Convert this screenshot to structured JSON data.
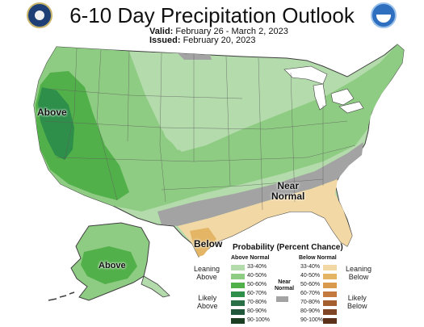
{
  "header": {
    "title": "6-10 Day Precipitation Outlook",
    "valid_label": "Valid:",
    "valid_dates": "February 26 - March 2, 2023",
    "issued_label": "Issued:",
    "issued_date": "February 20, 2023"
  },
  "map_labels": {
    "west_coast": "Above",
    "near_normal": "Near\nNormal",
    "texas": "Below",
    "alaska": "Above"
  },
  "legend": {
    "title": "Probability (Percent Chance)",
    "above_header": "Above Normal",
    "below_header": "Below Normal",
    "near_header": "Near\nNormal",
    "leaning_above": "Leaning\nAbove",
    "likely_above": "Likely\nAbove",
    "leaning_below": "Leaning\nBelow",
    "likely_below": "Likely\nBelow",
    "ranges": [
      "33-40%",
      "40-50%",
      "50-60%",
      "60-70%",
      "70-80%",
      "80-90%",
      "90-100%"
    ],
    "above_colors": [
      "#b3dbab",
      "#8fcc83",
      "#52b04a",
      "#2d8f49",
      "#297046",
      "#21573a",
      "#1a3f22"
    ],
    "below_colors": [
      "#f2d8a4",
      "#e3b565",
      "#d99a4d",
      "#c47a3f",
      "#a55f2e",
      "#7f4525",
      "#5b311a"
    ],
    "near_color": "#a3a3a3"
  },
  "colors": {
    "lake": "#ffffff",
    "border": "#3e3e3e"
  }
}
